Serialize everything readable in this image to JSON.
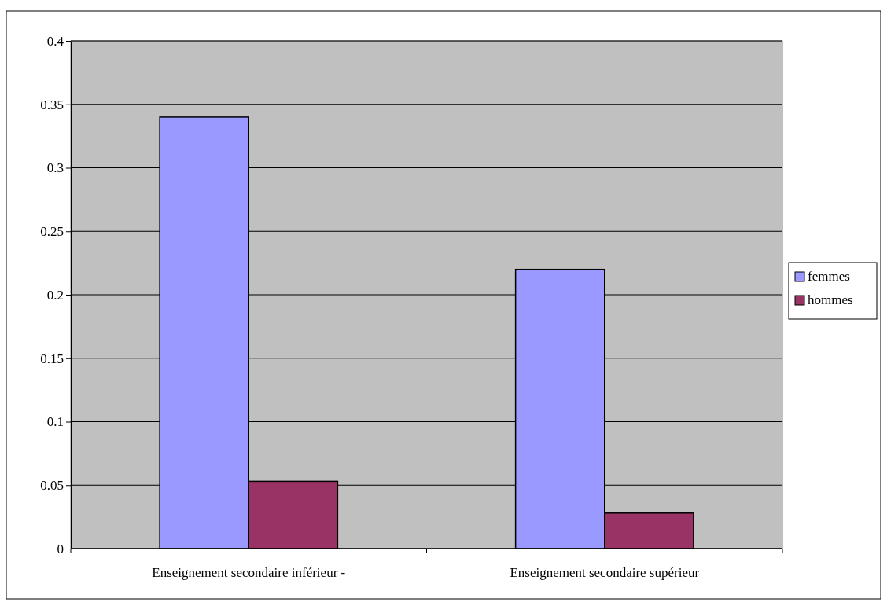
{
  "chart_data": {
    "type": "bar",
    "categories": [
      "Enseignement secondaire inférieur -",
      "Enseignement secondaire supérieur"
    ],
    "series": [
      {
        "name": "femmes",
        "color": "#9999ff",
        "values": [
          0.34,
          0.22
        ]
      },
      {
        "name": "hommes",
        "color": "#993366",
        "values": [
          0.053,
          0.028
        ]
      }
    ],
    "ylim": [
      0,
      0.4
    ],
    "yticks": [
      0,
      0.05,
      0.1,
      0.15,
      0.2,
      0.25,
      0.3,
      0.35,
      0.4
    ],
    "grid": "y",
    "legend": "right"
  }
}
